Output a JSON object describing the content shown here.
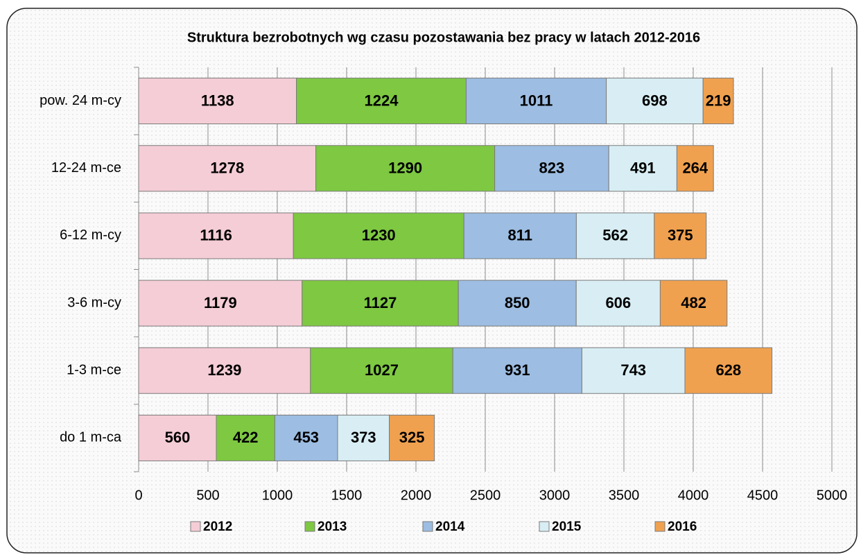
{
  "chart_data": {
    "type": "stacked-barh",
    "title": "Struktura bezrobotnych wg czasu pozostawania bez pracy w latach 2012-2016",
    "categories": [
      "do 1 m-ca",
      "1-3 m-ce",
      "3-6 m-cy",
      "6-12 m-cy",
      "12-24 m-ce",
      "pow. 24 m-cy"
    ],
    "series": [
      {
        "name": "2012",
        "color": "#f5cdd6",
        "values": [
          560,
          1239,
          1179,
          1116,
          1278,
          1138
        ]
      },
      {
        "name": "2013",
        "color": "#7ec842",
        "values": [
          422,
          1027,
          1127,
          1230,
          1290,
          1224
        ]
      },
      {
        "name": "2014",
        "color": "#9dbde2",
        "values": [
          453,
          931,
          850,
          811,
          823,
          1011
        ]
      },
      {
        "name": "2015",
        "color": "#d8eef4",
        "values": [
          373,
          743,
          606,
          562,
          491,
          698
        ]
      },
      {
        "name": "2016",
        "color": "#f0a14f",
        "values": [
          325,
          628,
          482,
          375,
          264,
          219
        ]
      }
    ],
    "xlim": [
      0,
      5000
    ],
    "xticks": [
      0,
      500,
      1000,
      1500,
      2000,
      2500,
      3000,
      3500,
      4000,
      4500,
      5000
    ],
    "grid": true,
    "legend": "bottom"
  }
}
